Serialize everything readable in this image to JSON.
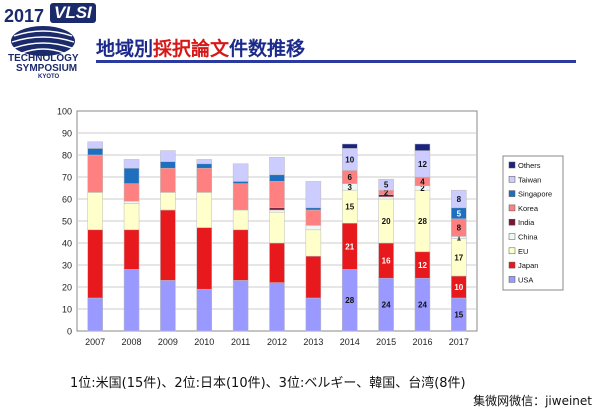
{
  "header": {
    "logo_year": "2017",
    "logo_name": "VLSI",
    "logo_line1": "TECHNOLOGY",
    "logo_line2": "SYMPOSIUM",
    "logo_line3": "KYOTO",
    "title_part1": "地域別",
    "title_part2": "採択論文",
    "title_part3": "件数推移"
  },
  "footer": {
    "summary": "1位:米国(15件)、2位:日本(10件)、3位:ベルギー、韓国、台湾(8件)",
    "credit": "集微网微信：jiweinet"
  },
  "colors": {
    "USA": "#9999ff",
    "Japan": "#e8191c",
    "EU": "#ffffcc",
    "China": "#eef8f8",
    "India": "#7a1535",
    "Korea": "#ff8080",
    "Singapore": "#1f6fbf",
    "Taiwan": "#ccccff",
    "Others": "#1a237e"
  },
  "chart_data": {
    "type": "bar",
    "stacked": true,
    "categories": [
      "2007",
      "2008",
      "2009",
      "2010",
      "2011",
      "2012",
      "2013",
      "2014",
      "2015",
      "2016",
      "2017"
    ],
    "ylim": [
      0,
      100
    ],
    "yticks": [
      0,
      10,
      20,
      30,
      40,
      50,
      60,
      70,
      80,
      90,
      100
    ],
    "grid": true,
    "legend_position": "right",
    "legend_order": [
      "Others",
      "Taiwan",
      "Singapore",
      "Korea",
      "India",
      "China",
      "EU",
      "Japan",
      "USA"
    ],
    "series": [
      {
        "name": "USA",
        "values": [
          15,
          28,
          23,
          19,
          23,
          22,
          15,
          28,
          24,
          24,
          15
        ]
      },
      {
        "name": "Japan",
        "values": [
          31,
          18,
          32,
          28,
          23,
          18,
          19,
          21,
          16,
          12,
          10
        ]
      },
      {
        "name": "EU",
        "values": [
          17,
          12,
          8,
          16,
          9,
          14,
          12,
          15,
          20,
          28,
          17
        ]
      },
      {
        "name": "China",
        "values": [
          0,
          1,
          0,
          0,
          0,
          1,
          2,
          3,
          1,
          2,
          1
        ]
      },
      {
        "name": "India",
        "values": [
          0,
          0,
          0,
          0,
          0,
          1,
          0,
          0,
          1,
          0,
          0
        ]
      },
      {
        "name": "Korea",
        "values": [
          17,
          8,
          11,
          11,
          12,
          12,
          7,
          6,
          2,
          4,
          8
        ]
      },
      {
        "name": "Singapore",
        "values": [
          3,
          7,
          3,
          2,
          1,
          3,
          1,
          0,
          0,
          0,
          5
        ]
      },
      {
        "name": "Taiwan",
        "values": [
          3,
          4,
          5,
          2,
          8,
          8,
          12,
          10,
          5,
          12,
          8
        ]
      },
      {
        "name": "Others",
        "values": [
          0,
          0,
          0,
          0,
          0,
          0,
          0,
          2,
          0,
          3,
          0
        ]
      }
    ],
    "data_labels": [
      {
        "category": "2014",
        "series": "USA",
        "text": "28"
      },
      {
        "category": "2014",
        "series": "Japan",
        "text": "21"
      },
      {
        "category": "2014",
        "series": "EU",
        "text": "15"
      },
      {
        "category": "2014",
        "series": "China",
        "text": "3"
      },
      {
        "category": "2014",
        "series": "Korea",
        "text": "6"
      },
      {
        "category": "2014",
        "series": "Taiwan",
        "text": "10"
      },
      {
        "category": "2015",
        "series": "USA",
        "text": "24"
      },
      {
        "category": "2015",
        "series": "Japan",
        "text": "16"
      },
      {
        "category": "2015",
        "series": "EU",
        "text": "20"
      },
      {
        "category": "2015",
        "series": "Korea",
        "text": "2"
      },
      {
        "category": "2015",
        "series": "Taiwan",
        "text": "5"
      },
      {
        "category": "2016",
        "series": "USA",
        "text": "24"
      },
      {
        "category": "2016",
        "series": "Japan",
        "text": "12"
      },
      {
        "category": "2016",
        "series": "EU",
        "text": "28"
      },
      {
        "category": "2016",
        "series": "China",
        "text": "2"
      },
      {
        "category": "2016",
        "series": "Korea",
        "text": "4"
      },
      {
        "category": "2016",
        "series": "Taiwan",
        "text": "12"
      },
      {
        "category": "2017",
        "series": "USA",
        "text": "15"
      },
      {
        "category": "2017",
        "series": "Japan",
        "text": "10"
      },
      {
        "category": "2017",
        "series": "EU",
        "text": "17"
      },
      {
        "category": "2017",
        "series": "China",
        "text": "1"
      },
      {
        "category": "2017",
        "series": "Korea",
        "text": "8"
      },
      {
        "category": "2017",
        "series": "Singapore",
        "text": "5"
      },
      {
        "category": "2017",
        "series": "Taiwan",
        "text": "8"
      }
    ]
  }
}
